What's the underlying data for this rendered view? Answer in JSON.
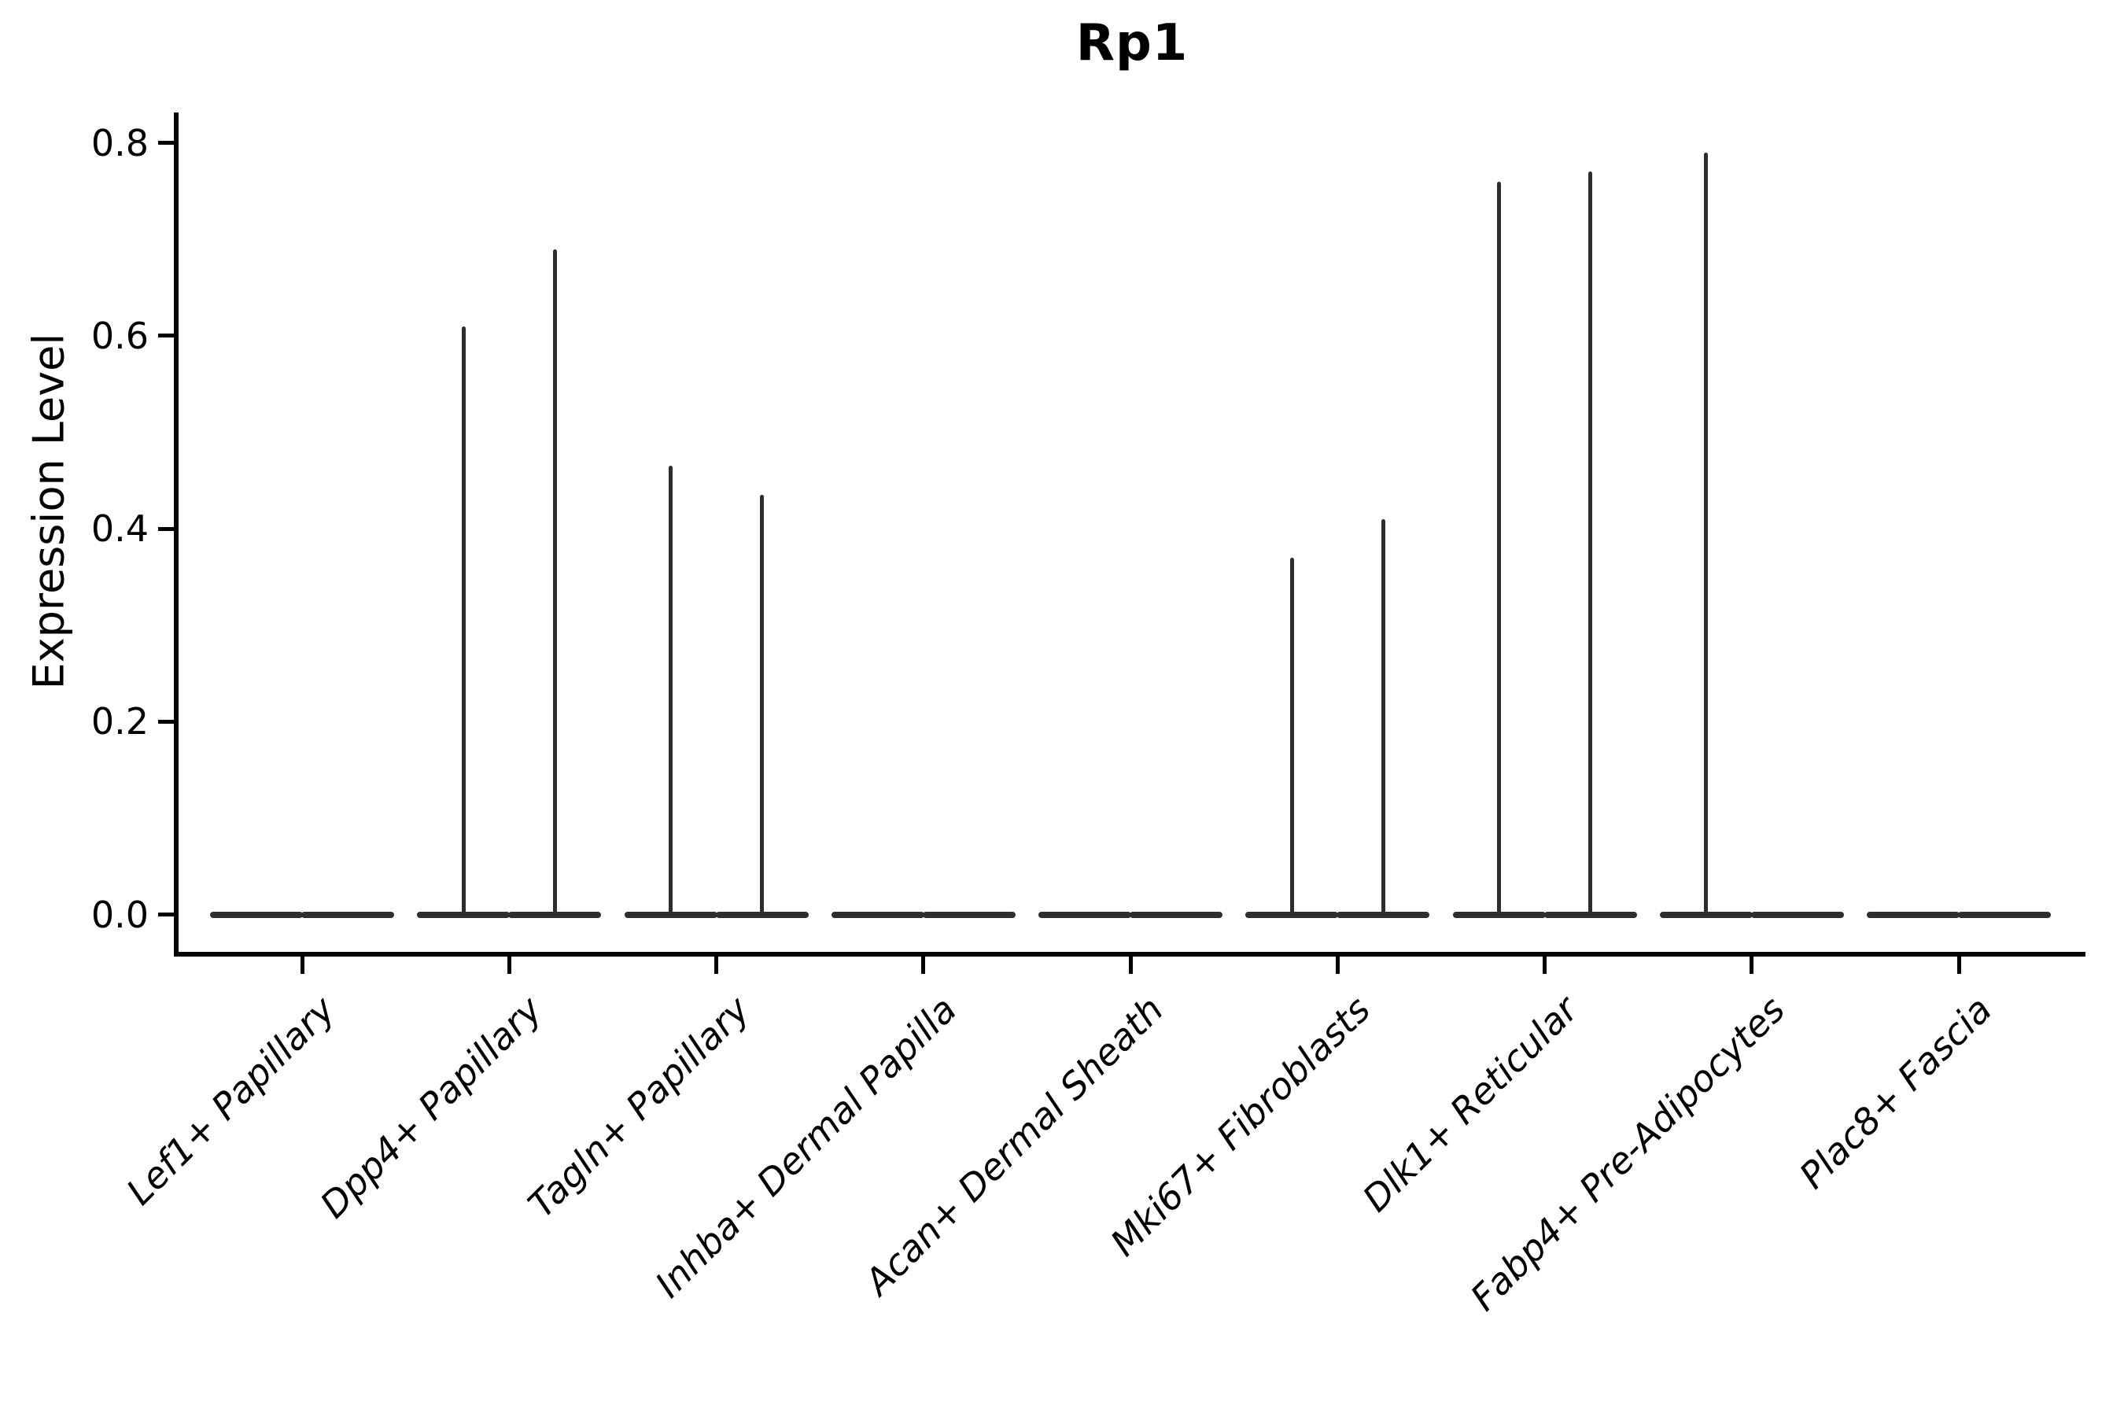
{
  "title": "Rp1",
  "ylabel": "Expression Level",
  "chart_data": {
    "type": "violin",
    "title": "Rp1",
    "xlabel": "",
    "ylabel": "Expression Level",
    "categories": [
      "Lef1+ Papillary",
      "Dpp4+ Papillary",
      "Tagln+ Papillary",
      "Inhba+ Dermal Papilla",
      "Acan+ Dermal Sheath",
      "Mki67+ Fibroblasts",
      "Dlk1+ Reticular",
      "Fabp4+ Pre-Adipocytes",
      "Plac8+ Fascia"
    ],
    "violins_per_category": 2,
    "series": [
      {
        "name": "violin-left",
        "max_values": [
          0,
          0.61,
          0.465,
          0,
          0,
          0.37,
          0.76,
          0.79,
          0
        ]
      },
      {
        "name": "violin-right",
        "max_values": [
          0,
          0.69,
          0.435,
          0,
          0,
          0.41,
          0.77,
          0,
          0
        ]
      }
    ],
    "baseline_value": 0.0,
    "yticks": [
      "0.0",
      "0.2",
      "0.4",
      "0.6",
      "0.8"
    ],
    "ytick_values": [
      0.0,
      0.2,
      0.4,
      0.6,
      0.8
    ],
    "ylim": [
      -0.0385,
      0.8315
    ],
    "grid": false,
    "legend": "none",
    "violin_color": "#2e2e2e",
    "axis_color": "#000000",
    "background_color": "#ffffff"
  }
}
